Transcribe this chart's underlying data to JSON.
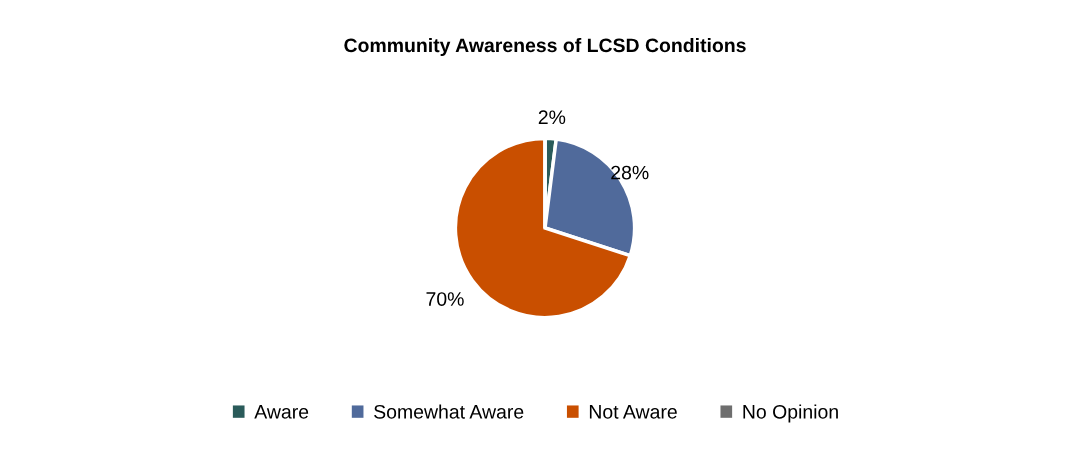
{
  "chart_data": {
    "type": "pie",
    "title": "Community Awareness of LCSD Conditions",
    "categories": [
      "Aware",
      "Somewhat Aware",
      "Not Aware",
      "No Opinion"
    ],
    "values": [
      2,
      28,
      70,
      0
    ],
    "colors": [
      "#2a5b5a",
      "#506a9b",
      "#c94f00",
      "#6e6e6e"
    ],
    "value_labels": [
      "2%",
      "28%",
      "70%",
      null
    ],
    "legend": "bottom"
  }
}
